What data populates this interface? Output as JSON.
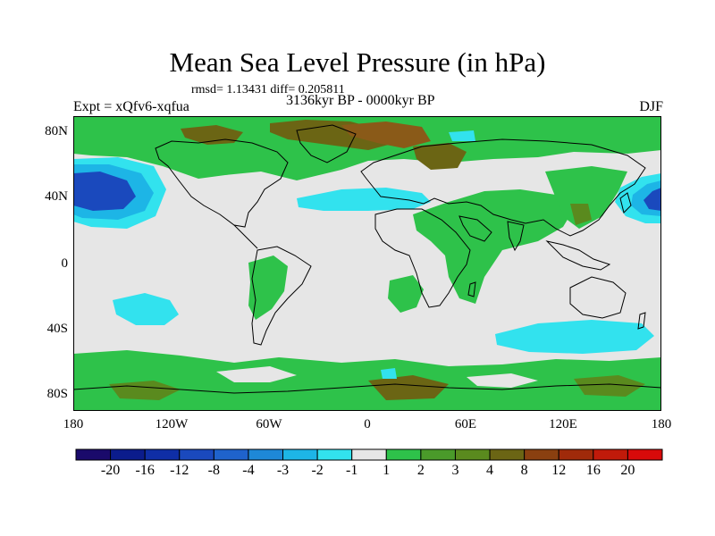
{
  "title": "Mean Sea Level Pressure (in hPa)",
  "stats": "rmsd= 1.13431 diff= 0.205811",
  "expt": "Expt = xQfv6-xqfua",
  "period": "3136kyr BP - 0000kyr BP",
  "season": "DJF",
  "lat_labels": [
    "80N",
    "40N",
    "0",
    "40S",
    "80S"
  ],
  "lon_labels": [
    "180",
    "120W",
    "60W",
    "0",
    "60E",
    "120E",
    "180"
  ],
  "colorbar": {
    "labels": [
      "-20",
      "-16",
      "-12",
      "-8",
      "-4",
      "-3",
      "-2",
      "-1",
      "1",
      "2",
      "3",
      "4",
      "8",
      "12",
      "16",
      "20"
    ],
    "colors": [
      "#1a0a6b",
      "#0b1c8c",
      "#0f2ea6",
      "#1a49bd",
      "#1f63cc",
      "#1e88d7",
      "#1db5e6",
      "#32e2ee",
      "#e6e6e6",
      "#2ec24a",
      "#4a9a2a",
      "#5a8a1e",
      "#6b6514",
      "#8a4010",
      "#a02a0a",
      "#c01a0a",
      "#d80a0a"
    ]
  },
  "colors": {
    "land_outline": "#000000",
    "missing": "#e6e6e6",
    "pos_small": "#2ec24a",
    "pos_mid": "#5a8a1e",
    "pos_large": "#8a5a18",
    "neg_small": "#32e2ee",
    "neg_mid": "#1db5e6",
    "neg_large": "#1a49bd"
  }
}
